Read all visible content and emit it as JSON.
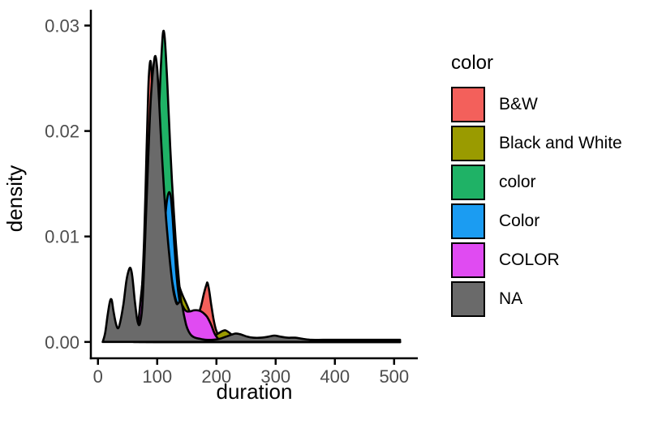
{
  "chart_data": {
    "type": "area",
    "subtype": "overlaid-density-plot",
    "title": "",
    "xlabel": "duration",
    "ylabel": "density",
    "xlim": [
      -12,
      540
    ],
    "ylim": [
      -0.00155,
      0.0315
    ],
    "x_ticks": {
      "values": [
        0,
        100,
        200,
        300,
        400,
        500
      ],
      "labels": [
        "0",
        "100",
        "200",
        "300",
        "400",
        "500"
      ]
    },
    "y_ticks": {
      "values": [
        0,
        0.01,
        0.02,
        0.03
      ],
      "labels": [
        "0.00",
        "0.01",
        "0.02",
        "0.03"
      ]
    },
    "grid": false,
    "legend_position": "right",
    "legend_title": "color",
    "outline_color": "#000000",
    "series": [
      {
        "id": "bw",
        "name": "B&W",
        "color": "#F3605B",
        "points": [
          [
            62,
            0
          ],
          [
            66,
            0.0005
          ],
          [
            70,
            0.0018
          ],
          [
            74,
            0.0048
          ],
          [
            78,
            0.0098
          ],
          [
            82,
            0.018
          ],
          [
            85,
            0.024
          ],
          [
            87,
            0.0261
          ],
          [
            89,
            0.0266
          ],
          [
            91,
            0.0251
          ],
          [
            94,
            0.021
          ],
          [
            97,
            0.016
          ],
          [
            100,
            0.012
          ],
          [
            104,
            0.0082
          ],
          [
            108,
            0.0056
          ],
          [
            112,
            0.004
          ],
          [
            117,
            0.0028
          ],
          [
            123,
            0.0019
          ],
          [
            130,
            0.0013
          ],
          [
            138,
            0.001
          ],
          [
            146,
            0.001
          ],
          [
            154,
            0.0012
          ],
          [
            161,
            0.0016
          ],
          [
            168,
            0.0024
          ],
          [
            174,
            0.0034
          ],
          [
            179,
            0.0046
          ],
          [
            183,
            0.0054
          ],
          [
            185,
            0.0056
          ],
          [
            188,
            0.0048
          ],
          [
            191,
            0.0036
          ],
          [
            195,
            0.0022
          ],
          [
            199,
            0.0012
          ],
          [
            204,
            0.0006
          ],
          [
            210,
            0.0003
          ],
          [
            218,
            0.0002
          ],
          [
            230,
            0.0001
          ],
          [
            250,
            0.0001
          ],
          [
            300,
            0
          ],
          [
            510,
            0
          ]
        ]
      },
      {
        "id": "black-and-white",
        "name": "Black and White",
        "color": "#9A9B00",
        "points": [
          [
            70,
            0
          ],
          [
            75,
            0.0012
          ],
          [
            80,
            0.004
          ],
          [
            85,
            0.009
          ],
          [
            90,
            0.0148
          ],
          [
            95,
            0.0196
          ],
          [
            99,
            0.0218
          ],
          [
            103,
            0.0221
          ],
          [
            107,
            0.0204
          ],
          [
            111,
            0.0178
          ],
          [
            115,
            0.0149
          ],
          [
            119,
            0.0122
          ],
          [
            123,
            0.01
          ],
          [
            127,
            0.0086
          ],
          [
            131,
            0.007
          ],
          [
            135,
            0.0058
          ],
          [
            139,
            0.005
          ],
          [
            143,
            0.0044
          ],
          [
            147,
            0.0039
          ],
          [
            151,
            0.0034
          ],
          [
            156,
            0.0027
          ],
          [
            161,
            0.002
          ],
          [
            167,
            0.0013
          ],
          [
            173,
            0.0009
          ],
          [
            180,
            0.0006
          ],
          [
            188,
            0.0005
          ],
          [
            196,
            0.0006
          ],
          [
            203,
            0.0008
          ],
          [
            209,
            0.001
          ],
          [
            215,
            0.0011
          ],
          [
            221,
            0.0009
          ],
          [
            228,
            0.0006
          ],
          [
            236,
            0.0003
          ],
          [
            246,
            0.0002
          ],
          [
            260,
            0.0001
          ],
          [
            285,
            0.0001
          ],
          [
            320,
            0
          ],
          [
            510,
            0
          ]
        ]
      },
      {
        "id": "color-lowercase",
        "name": "color",
        "color": "#1FB266",
        "points": [
          [
            82,
            0
          ],
          [
            86,
            0.0012
          ],
          [
            90,
            0.004
          ],
          [
            94,
            0.0085
          ],
          [
            98,
            0.0145
          ],
          [
            102,
            0.0205
          ],
          [
            106,
            0.0258
          ],
          [
            109,
            0.0288
          ],
          [
            111,
            0.0295
          ],
          [
            113,
            0.0286
          ],
          [
            116,
            0.0258
          ],
          [
            119,
            0.0222
          ],
          [
            122,
            0.0185
          ],
          [
            125,
            0.0152
          ],
          [
            128,
            0.0124
          ],
          [
            131,
            0.0098
          ],
          [
            134,
            0.0076
          ],
          [
            137,
            0.0056
          ],
          [
            140,
            0.004
          ],
          [
            144,
            0.0026
          ],
          [
            148,
            0.0016
          ],
          [
            152,
            0.0009
          ],
          [
            157,
            0.0005
          ],
          [
            163,
            0.0002
          ],
          [
            170,
            0.0001
          ],
          [
            180,
            0
          ],
          [
            510,
            0
          ]
        ]
      },
      {
        "id": "color-titlecase",
        "name": "Color",
        "color": "#1B9CF2",
        "points": [
          [
            94,
            0
          ],
          [
            99,
            0.0012
          ],
          [
            103,
            0.0032
          ],
          [
            107,
            0.0062
          ],
          [
            111,
            0.0096
          ],
          [
            114,
            0.0121
          ],
          [
            117,
            0.0136
          ],
          [
            120,
            0.0142
          ],
          [
            123,
            0.0137
          ],
          [
            126,
            0.0118
          ],
          [
            129,
            0.0092
          ],
          [
            132,
            0.0068
          ],
          [
            135,
            0.005
          ],
          [
            138,
            0.0038
          ],
          [
            142,
            0.0026
          ],
          [
            146,
            0.0016
          ],
          [
            150,
            0.001
          ],
          [
            155,
            0.0006
          ],
          [
            161,
            0.0003
          ],
          [
            168,
            0.0001
          ],
          [
            180,
            0.0001
          ],
          [
            195,
            0
          ],
          [
            510,
            0
          ]
        ]
      },
      {
        "id": "color-uppercase",
        "name": "COLOR",
        "color": "#E04BF2",
        "points": [
          [
            60,
            0
          ],
          [
            64,
            0.0006
          ],
          [
            68,
            0.0018
          ],
          [
            72,
            0.004
          ],
          [
            76,
            0.0062
          ],
          [
            80,
            0.0092
          ],
          [
            84,
            0.0135
          ],
          [
            88,
            0.0185
          ],
          [
            92,
            0.0226
          ],
          [
            95,
            0.0242
          ],
          [
            98,
            0.0239
          ],
          [
            101,
            0.0218
          ],
          [
            104,
            0.0185
          ],
          [
            107,
            0.0152
          ],
          [
            110,
            0.0124
          ],
          [
            113,
            0.0103
          ],
          [
            116,
            0.0088
          ],
          [
            119,
            0.0077
          ],
          [
            122,
            0.0067
          ],
          [
            125,
            0.0058
          ],
          [
            128,
            0.0049
          ],
          [
            131,
            0.0041
          ],
          [
            134,
            0.0036
          ],
          [
            137,
            0.0034
          ],
          [
            140,
            0.0036
          ],
          [
            143,
            0.0034
          ],
          [
            146,
            0.0031
          ],
          [
            150,
            0.0029
          ],
          [
            156,
            0.0029
          ],
          [
            162,
            0.003
          ],
          [
            168,
            0.003
          ],
          [
            174,
            0.0029
          ],
          [
            179,
            0.0027
          ],
          [
            184,
            0.0024
          ],
          [
            188,
            0.002
          ],
          [
            192,
            0.0015
          ],
          [
            196,
            0.0009
          ],
          [
            200,
            0.0005
          ],
          [
            205,
            0.0002
          ],
          [
            212,
            0.0001
          ],
          [
            235,
            0
          ],
          [
            510,
            0
          ]
        ]
      },
      {
        "id": "na",
        "name": "NA",
        "color": "#6A6A6A",
        "points": [
          [
            8,
            0
          ],
          [
            12,
            0.0008
          ],
          [
            16,
            0.0024
          ],
          [
            20,
            0.0038
          ],
          [
            23,
            0.004
          ],
          [
            26,
            0.003
          ],
          [
            30,
            0.0018
          ],
          [
            34,
            0.0013
          ],
          [
            38,
            0.002
          ],
          [
            43,
            0.0036
          ],
          [
            48,
            0.0058
          ],
          [
            52,
            0.0068
          ],
          [
            55,
            0.007
          ],
          [
            58,
            0.0062
          ],
          [
            62,
            0.004
          ],
          [
            66,
            0.0022
          ],
          [
            69,
            0.0016
          ],
          [
            72,
            0.002
          ],
          [
            75,
            0.0035
          ],
          [
            78,
            0.0072
          ],
          [
            81,
            0.0118
          ],
          [
            84,
            0.0162
          ],
          [
            87,
            0.0205
          ],
          [
            90,
            0.0238
          ],
          [
            94,
            0.0263
          ],
          [
            97,
            0.0271
          ],
          [
            100,
            0.0259
          ],
          [
            103,
            0.023
          ],
          [
            106,
            0.0198
          ],
          [
            109,
            0.0168
          ],
          [
            112,
            0.014
          ],
          [
            115,
            0.0117
          ],
          [
            118,
            0.0097
          ],
          [
            121,
            0.0079
          ],
          [
            124,
            0.0063
          ],
          [
            127,
            0.0049
          ],
          [
            130,
            0.0041
          ],
          [
            133,
            0.0036
          ],
          [
            136,
            0.0037
          ],
          [
            139,
            0.0039
          ],
          [
            142,
            0.0035
          ],
          [
            145,
            0.0026
          ],
          [
            149,
            0.0016
          ],
          [
            153,
            0.001
          ],
          [
            158,
            0.0006
          ],
          [
            164,
            0.0004
          ],
          [
            172,
            0.0003
          ],
          [
            182,
            0.0002
          ],
          [
            194,
            0.0002
          ],
          [
            206,
            0.0003
          ],
          [
            216,
            0.0005
          ],
          [
            226,
            0.0007
          ],
          [
            233,
            0.0008
          ],
          [
            242,
            0.0007
          ],
          [
            252,
            0.0005
          ],
          [
            262,
            0.0004
          ],
          [
            275,
            0.0004
          ],
          [
            288,
            0.0005
          ],
          [
            298,
            0.0006
          ],
          [
            308,
            0.0005
          ],
          [
            320,
            0.0004
          ],
          [
            333,
            0.0004
          ],
          [
            345,
            0.0003
          ],
          [
            360,
            0.0002
          ],
          [
            380,
            0.0002
          ],
          [
            405,
            0.0002
          ],
          [
            430,
            0.0002
          ],
          [
            455,
            0.0002
          ],
          [
            480,
            0.0002
          ],
          [
            500,
            0.0002
          ],
          [
            510,
            0.0002
          ]
        ]
      }
    ]
  },
  "legend": {
    "title": "color",
    "items": [
      {
        "label": "B&W",
        "color": "#F3605B"
      },
      {
        "label": "Black and White",
        "color": "#9A9B00"
      },
      {
        "label": "color",
        "color": "#1FB266"
      },
      {
        "label": "Color",
        "color": "#1B9CF2"
      },
      {
        "label": "COLOR",
        "color": "#E04BF2"
      },
      {
        "label": "NA",
        "color": "#6A6A6A"
      }
    ]
  },
  "styles": {
    "background": "#FFFFFF",
    "axis_line_color": "#000000",
    "tick_label_color": "#4D4D4D",
    "curve_outline_color": "#000000"
  }
}
